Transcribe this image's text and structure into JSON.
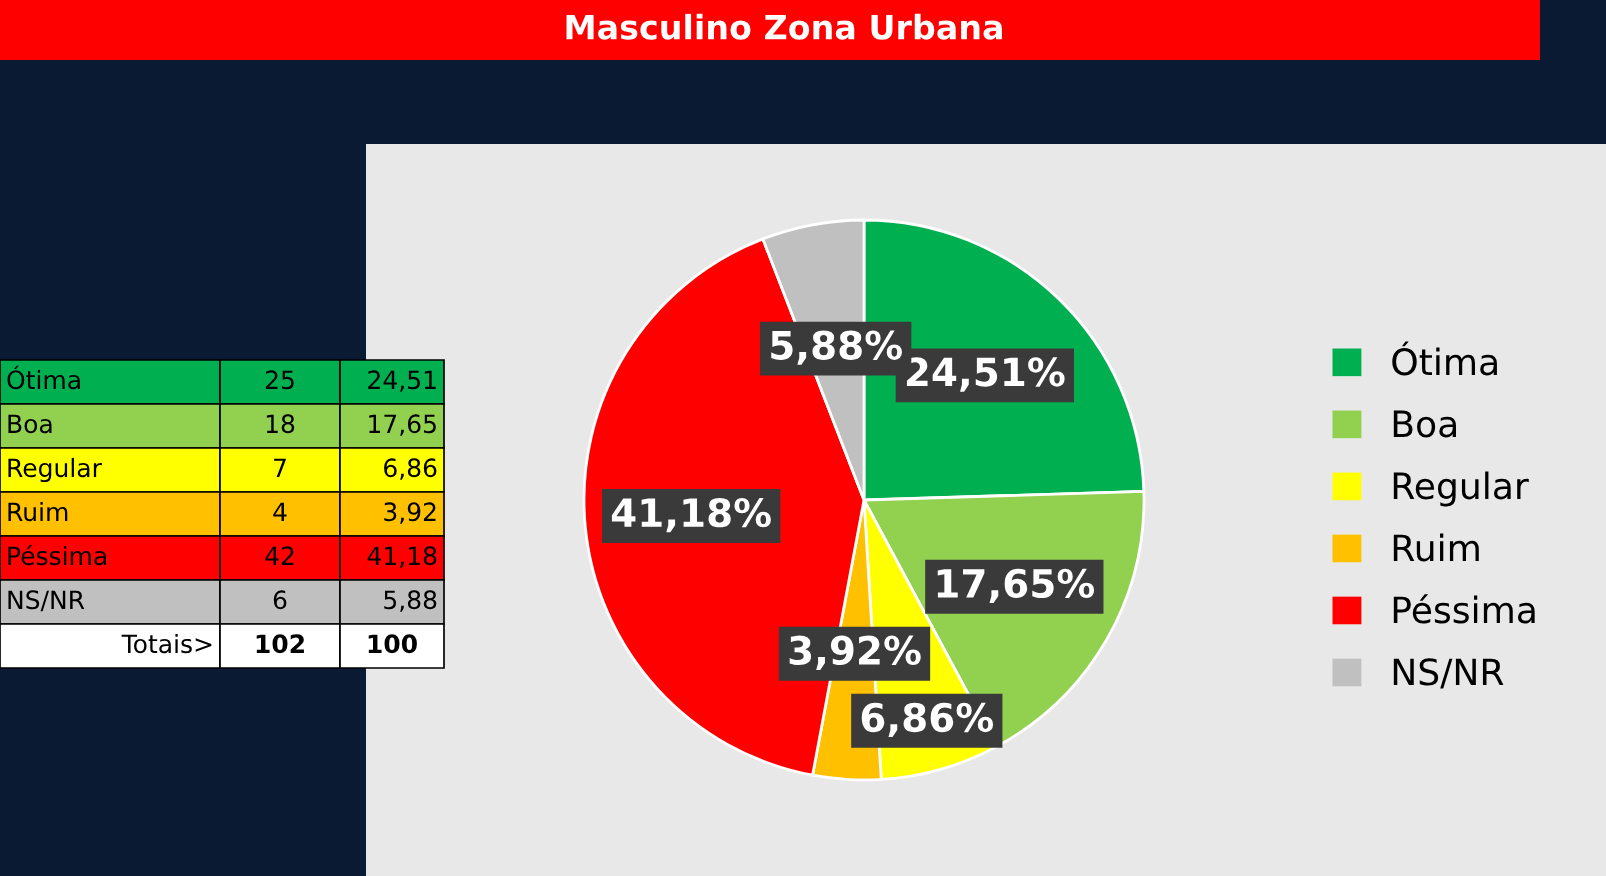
{
  "chart_data": {
    "type": "pie",
    "title": "Masculino Zona Urbana",
    "categories": [
      "Ótima",
      "Boa",
      "Regular",
      "Ruim",
      "Péssima",
      "NS/NR"
    ],
    "values": [
      24.51,
      17.65,
      6.86,
      3.92,
      41.18,
      5.88
    ],
    "colors": [
      "#00b050",
      "#92d050",
      "#ffff00",
      "#ffc000",
      "#ff0000",
      "#c0c0c0"
    ],
    "value_labels": [
      "24,51%",
      "17,65%",
      "6,86%",
      "3,92%",
      "41,18%",
      "5,88%"
    ],
    "legend": "right",
    "annotations": [
      "25",
      "24,51",
      "18",
      "17,65",
      "7",
      "6,86",
      "4",
      "3,92",
      "42",
      "41,18",
      "6",
      "5,88",
      "Totais>",
      "102",
      "100"
    ]
  }
}
